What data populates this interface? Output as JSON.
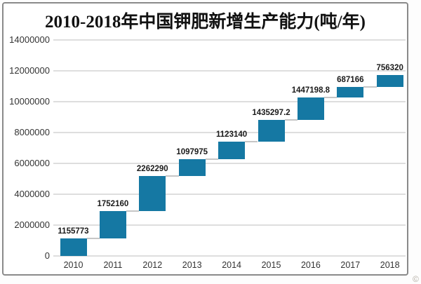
{
  "page": {
    "watermark_glyph": "©"
  },
  "chart_data": {
    "type": "bar",
    "subtype": "waterfall",
    "title": "2010-2018年中国钾肥新增生产能力(吨/年)",
    "categories": [
      "2010",
      "2011",
      "2012",
      "2013",
      "2014",
      "2015",
      "2016",
      "2017",
      "2018"
    ],
    "values": [
      1155773,
      1752160,
      2262290,
      1097975,
      1123140,
      1435297.2,
      1447198.8,
      687166,
      756320
    ],
    "labels": [
      "1155773",
      "1752160",
      "2262290",
      "1097975",
      "1123140",
      "1435297.2",
      "1447198.8",
      "687166",
      "756320"
    ],
    "cumulative": [
      1155773,
      2907933,
      5170223,
      6268198,
      7391338,
      8826635.2,
      10273834,
      10961000,
      11717320
    ],
    "xlabel": "",
    "ylabel": "",
    "ylim": [
      0,
      14000000
    ],
    "ytick_step": 2000000,
    "yticks": [
      "0",
      "2000000",
      "4000000",
      "6000000",
      "8000000",
      "10000000",
      "12000000",
      "14000000"
    ],
    "grid": true,
    "legend": "none",
    "colors": {
      "bar": "#1578a3",
      "gridline": "#dedede",
      "connector": "#c6c6c6",
      "tick_text": "#333333",
      "data_label_text": "#1a1a1a",
      "title_text": "#111111",
      "border": "#8a8a8a"
    }
  }
}
